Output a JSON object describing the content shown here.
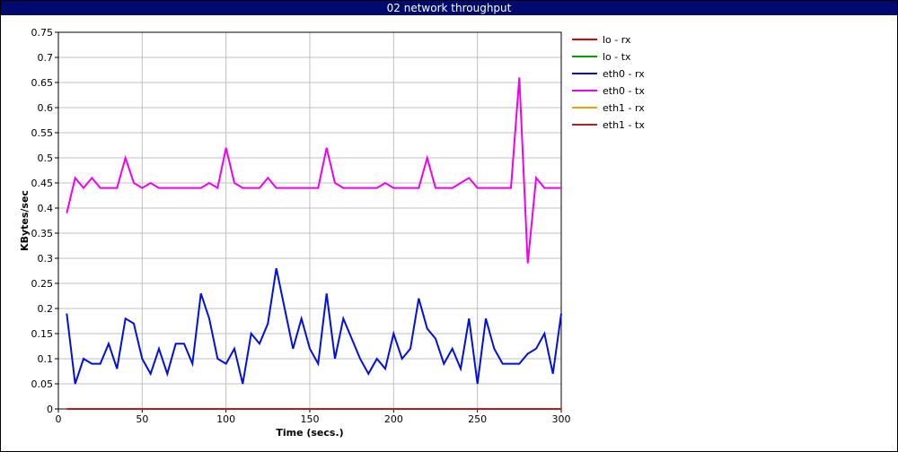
{
  "window": {
    "title": "02 network throughput"
  },
  "chart_data": {
    "type": "line",
    "title": "02 network throughput",
    "xlabel": "Time (secs.)",
    "ylabel": "KBytes/sec",
    "xlim": [
      0,
      300
    ],
    "ylim": [
      0,
      0.75
    ],
    "xticks": [
      0,
      50,
      100,
      150,
      200,
      250,
      300
    ],
    "yticks": [
      0,
      0.05,
      0.1,
      0.15,
      0.2,
      0.25,
      0.3,
      0.35,
      0.4,
      0.45,
      0.5,
      0.55,
      0.6,
      0.65,
      0.7,
      0.75
    ],
    "grid": true,
    "legend_position": "right",
    "x": [
      5,
      10,
      15,
      20,
      25,
      30,
      35,
      40,
      45,
      50,
      55,
      60,
      65,
      70,
      75,
      80,
      85,
      90,
      95,
      100,
      105,
      110,
      115,
      120,
      125,
      130,
      135,
      140,
      145,
      150,
      155,
      160,
      165,
      170,
      175,
      180,
      185,
      190,
      195,
      200,
      205,
      210,
      215,
      220,
      225,
      230,
      235,
      240,
      245,
      250,
      255,
      260,
      265,
      270,
      275,
      280,
      285,
      290,
      295,
      300
    ],
    "series": [
      {
        "name": "lo - rx",
        "color": "#e00000",
        "values": [
          0,
          0,
          0,
          0,
          0,
          0,
          0,
          0,
          0,
          0,
          0,
          0,
          0,
          0,
          0,
          0,
          0,
          0,
          0,
          0,
          0,
          0,
          0,
          0,
          0,
          0,
          0,
          0,
          0,
          0,
          0,
          0,
          0,
          0,
          0,
          0,
          0,
          0,
          0,
          0,
          0,
          0,
          0,
          0,
          0,
          0,
          0,
          0,
          0,
          0,
          0,
          0,
          0,
          0,
          0,
          0,
          0,
          0,
          0,
          0
        ]
      },
      {
        "name": "lo - tx",
        "color": "#00a000",
        "values": [
          0,
          0,
          0,
          0,
          0,
          0,
          0,
          0,
          0,
          0,
          0,
          0,
          0,
          0,
          0,
          0,
          0,
          0,
          0,
          0,
          0,
          0,
          0,
          0,
          0,
          0,
          0,
          0,
          0,
          0,
          0,
          0,
          0,
          0,
          0,
          0,
          0,
          0,
          0,
          0,
          0,
          0,
          0,
          0,
          0,
          0,
          0,
          0,
          0,
          0,
          0,
          0,
          0,
          0,
          0,
          0,
          0,
          0,
          0,
          0
        ]
      },
      {
        "name": "eth0 - rx",
        "color": "#0010e0",
        "values": [
          0.19,
          0.05,
          0.1,
          0.09,
          0.09,
          0.13,
          0.08,
          0.18,
          0.17,
          0.1,
          0.07,
          0.12,
          0.07,
          0.13,
          0.13,
          0.09,
          0.23,
          0.18,
          0.1,
          0.09,
          0.12,
          0.05,
          0.15,
          0.13,
          0.17,
          0.28,
          0.2,
          0.12,
          0.18,
          0.12,
          0.09,
          0.23,
          0.1,
          0.18,
          0.14,
          0.1,
          0.07,
          0.1,
          0.08,
          0.15,
          0.1,
          0.12,
          0.22,
          0.16,
          0.14,
          0.09,
          0.12,
          0.08,
          0.18,
          0.05,
          0.18,
          0.12,
          0.09,
          0.09,
          0.09,
          0.11,
          0.12,
          0.15,
          0.07,
          0.19
        ]
      },
      {
        "name": "eth0 - tx",
        "color": "#f000f0",
        "values": [
          0.39,
          0.46,
          0.44,
          0.46,
          0.44,
          0.44,
          0.44,
          0.5,
          0.45,
          0.44,
          0.45,
          0.44,
          0.44,
          0.44,
          0.44,
          0.44,
          0.44,
          0.45,
          0.44,
          0.52,
          0.45,
          0.44,
          0.44,
          0.44,
          0.46,
          0.44,
          0.44,
          0.44,
          0.44,
          0.44,
          0.44,
          0.52,
          0.45,
          0.44,
          0.44,
          0.44,
          0.44,
          0.44,
          0.45,
          0.44,
          0.44,
          0.44,
          0.44,
          0.5,
          0.44,
          0.44,
          0.44,
          0.45,
          0.46,
          0.44,
          0.44,
          0.44,
          0.44,
          0.44,
          0.66,
          0.29,
          0.46,
          0.44,
          0.44,
          0.44
        ]
      },
      {
        "name": "eth1 - rx",
        "color": "#f0a000",
        "values": [
          0,
          0,
          0,
          0,
          0,
          0,
          0,
          0,
          0,
          0,
          0,
          0,
          0,
          0,
          0,
          0,
          0,
          0,
          0,
          0,
          0,
          0,
          0,
          0,
          0,
          0,
          0,
          0,
          0,
          0,
          0,
          0,
          0,
          0,
          0,
          0,
          0,
          0,
          0,
          0,
          0,
          0,
          0,
          0,
          0,
          0,
          0,
          0,
          0,
          0,
          0,
          0,
          0,
          0,
          0,
          0,
          0,
          0,
          0,
          0
        ]
      },
      {
        "name": "eth1 - tx",
        "color": "#b02020",
        "values": [
          0,
          0,
          0,
          0,
          0,
          0,
          0,
          0,
          0,
          0,
          0,
          0,
          0,
          0,
          0,
          0,
          0,
          0,
          0,
          0,
          0,
          0,
          0,
          0,
          0,
          0,
          0,
          0,
          0,
          0,
          0,
          0,
          0,
          0,
          0,
          0,
          0,
          0,
          0,
          0,
          0,
          0,
          0,
          0,
          0,
          0,
          0,
          0,
          0,
          0,
          0,
          0,
          0,
          0,
          0,
          0,
          0,
          0,
          0,
          0
        ]
      }
    ]
  }
}
